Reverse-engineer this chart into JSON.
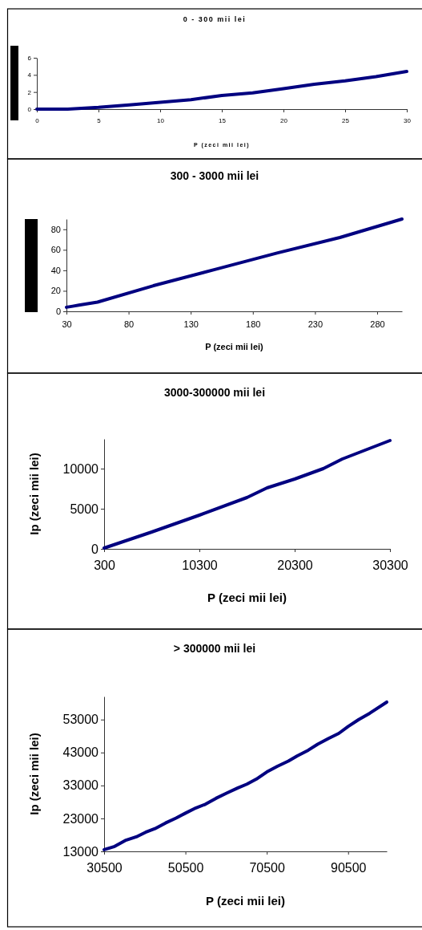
{
  "chart_data": [
    {
      "type": "line",
      "title": "0 - 300 mii lei",
      "xlabel": "P (zeci mii lei)",
      "x": [
        0,
        2.5,
        5,
        7.5,
        10,
        12.5,
        15,
        17.5,
        20,
        22.5,
        25,
        27.5,
        30
      ],
      "series": [
        {
          "color": "#000080",
          "values": [
            0,
            0,
            0.2,
            0.5,
            0.8,
            1.1,
            1.6,
            1.9,
            2.4,
            2.9,
            3.3,
            3.8,
            4.4
          ]
        }
      ],
      "xlim": [
        0,
        30
      ],
      "ylim": [
        0,
        6
      ],
      "xticks": [
        0,
        5,
        10,
        15,
        20,
        25,
        30
      ],
      "yticks": [
        0,
        2,
        4,
        6
      ]
    },
    {
      "type": "line",
      "title": "300 - 3000 mii lei",
      "xlabel": "P (zeci mii lei)",
      "x": [
        30,
        35,
        40,
        45,
        50,
        55,
        100,
        150,
        200,
        250,
        300
      ],
      "series": [
        {
          "color": "#000080",
          "values": [
            4,
            5,
            6,
            7,
            8,
            9,
            25,
            41,
            57,
            72,
            90
          ]
        }
      ],
      "xlim": [
        30,
        300
      ],
      "ylim": [
        0,
        90
      ],
      "xticks": [
        30,
        80,
        130,
        180,
        230,
        280
      ],
      "yticks": [
        0,
        20,
        40,
        60,
        80
      ]
    },
    {
      "type": "line",
      "title": "3000-300000 mii lei",
      "xlabel": "P (zeci mii lei)",
      "ylabel": "Ip (zeci mii lei)",
      "x": [
        300,
        5300,
        10300,
        15300,
        17400,
        20300,
        23300,
        25300,
        30300
      ],
      "series": [
        {
          "color": "#000080",
          "values": [
            100,
            2100,
            4200,
            6400,
            7600,
            8700,
            10000,
            11200,
            13500
          ]
        }
      ],
      "xlim": [
        300,
        30300
      ],
      "ylim": [
        0,
        13700
      ],
      "xticks": [
        300,
        10300,
        20300,
        30300
      ],
      "yticks": [
        0,
        5000,
        10000
      ]
    },
    {
      "type": "line",
      "title": "> 300000 mii lei",
      "xlabel": "P (zeci mii lei)",
      "ylabel": "Ip (zeci mii lei)",
      "x": [
        30500,
        33100,
        35700,
        38400,
        40700,
        43000,
        45600,
        48200,
        50500,
        53100,
        55400,
        58000,
        60700,
        63300,
        65600,
        67900,
        70500,
        73100,
        75800,
        78000,
        80700,
        83000,
        85600,
        88200,
        90500,
        93100,
        95800,
        100000
      ],
      "series": [
        {
          "color": "#000080",
          "values": [
            13500,
            14500,
            16300,
            17400,
            18800,
            19900,
            21600,
            23100,
            24600,
            26200,
            27300,
            29100,
            30700,
            32200,
            33400,
            34900,
            37100,
            38800,
            40400,
            42000,
            43700,
            45500,
            47200,
            48800,
            50900,
            53000,
            54900,
            58300
          ]
        }
      ],
      "xlim": [
        30500,
        100000
      ],
      "ylim": [
        13000,
        60000
      ],
      "xticks": [
        30500,
        50500,
        70500,
        90500
      ],
      "yticks": [
        13000,
        23000,
        33000,
        43000,
        53000
      ]
    }
  ]
}
